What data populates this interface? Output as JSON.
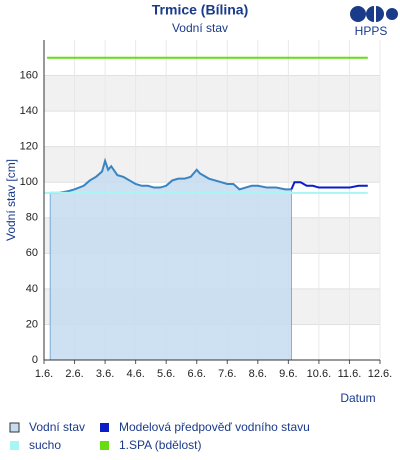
{
  "chart_data": {
    "type": "line",
    "title": "Trmice (Bílina)",
    "subtitle": "Vodní stav",
    "logo": "HPPS",
    "x_label": "Datum",
    "y_label": "Vodní stav [cm]",
    "xlim": [
      1,
      12
    ],
    "ylim": [
      0,
      180
    ],
    "xticks": [
      {
        "value": 1,
        "label": "1.6."
      },
      {
        "value": 2,
        "label": "2.6."
      },
      {
        "value": 3,
        "label": "3.6."
      },
      {
        "value": 4,
        "label": "4.6."
      },
      {
        "value": 5,
        "label": "5.6."
      },
      {
        "value": 6,
        "label": "6.6."
      },
      {
        "value": 7,
        "label": "7.6."
      },
      {
        "value": 8,
        "label": "8.6."
      },
      {
        "value": 9,
        "label": "9.6."
      },
      {
        "value": 10,
        "label": "10.6."
      },
      {
        "value": 11,
        "label": "11.6."
      },
      {
        "value": 12,
        "label": "12.6."
      }
    ],
    "yticks": [
      0,
      20,
      40,
      60,
      80,
      100,
      120,
      140,
      160
    ],
    "grid": true,
    "series": [
      {
        "name": "Vodní stav",
        "color": "#3a84c0",
        "fill": "#c5dcf1",
        "x": [
          1.2,
          1.5,
          1.8,
          2.0,
          2.3,
          2.5,
          2.7,
          2.9,
          3.0,
          3.1,
          3.2,
          3.4,
          3.6,
          3.8,
          4.0,
          4.2,
          4.4,
          4.6,
          4.8,
          5.0,
          5.2,
          5.4,
          5.6,
          5.8,
          6.0,
          6.1,
          6.2,
          6.4,
          6.6,
          6.8,
          7.0,
          7.2,
          7.4,
          7.6,
          7.8,
          8.0,
          8.3,
          8.6,
          8.9,
          9.1
        ],
        "values": [
          94,
          94,
          95,
          96,
          98,
          101,
          103,
          106,
          112,
          107,
          109,
          104,
          103,
          101,
          99,
          98,
          98,
          97,
          97,
          98,
          101,
          102,
          102,
          103,
          107,
          105,
          104,
          102,
          101,
          100,
          99,
          99,
          96,
          97,
          98,
          98,
          97,
          97,
          96,
          96
        ]
      },
      {
        "name": "sucho",
        "color": "#a8f5f5",
        "x": [
          1.0,
          11.6
        ],
        "values": [
          94,
          94
        ]
      },
      {
        "name": "Modelová předpověď vodního stavu",
        "color": "#0a1ec8",
        "x": [
          9.1,
          9.2,
          9.4,
          9.6,
          9.8,
          10.0,
          10.5,
          11.0,
          11.3,
          11.6
        ],
        "values": [
          96,
          100,
          100,
          98,
          98,
          97,
          97,
          97,
          98,
          98
        ]
      },
      {
        "name": "1.SPA (bdělost)",
        "color": "#66dd11",
        "x": [
          1.1,
          11.6
        ],
        "values": [
          170,
          170
        ]
      }
    ]
  }
}
